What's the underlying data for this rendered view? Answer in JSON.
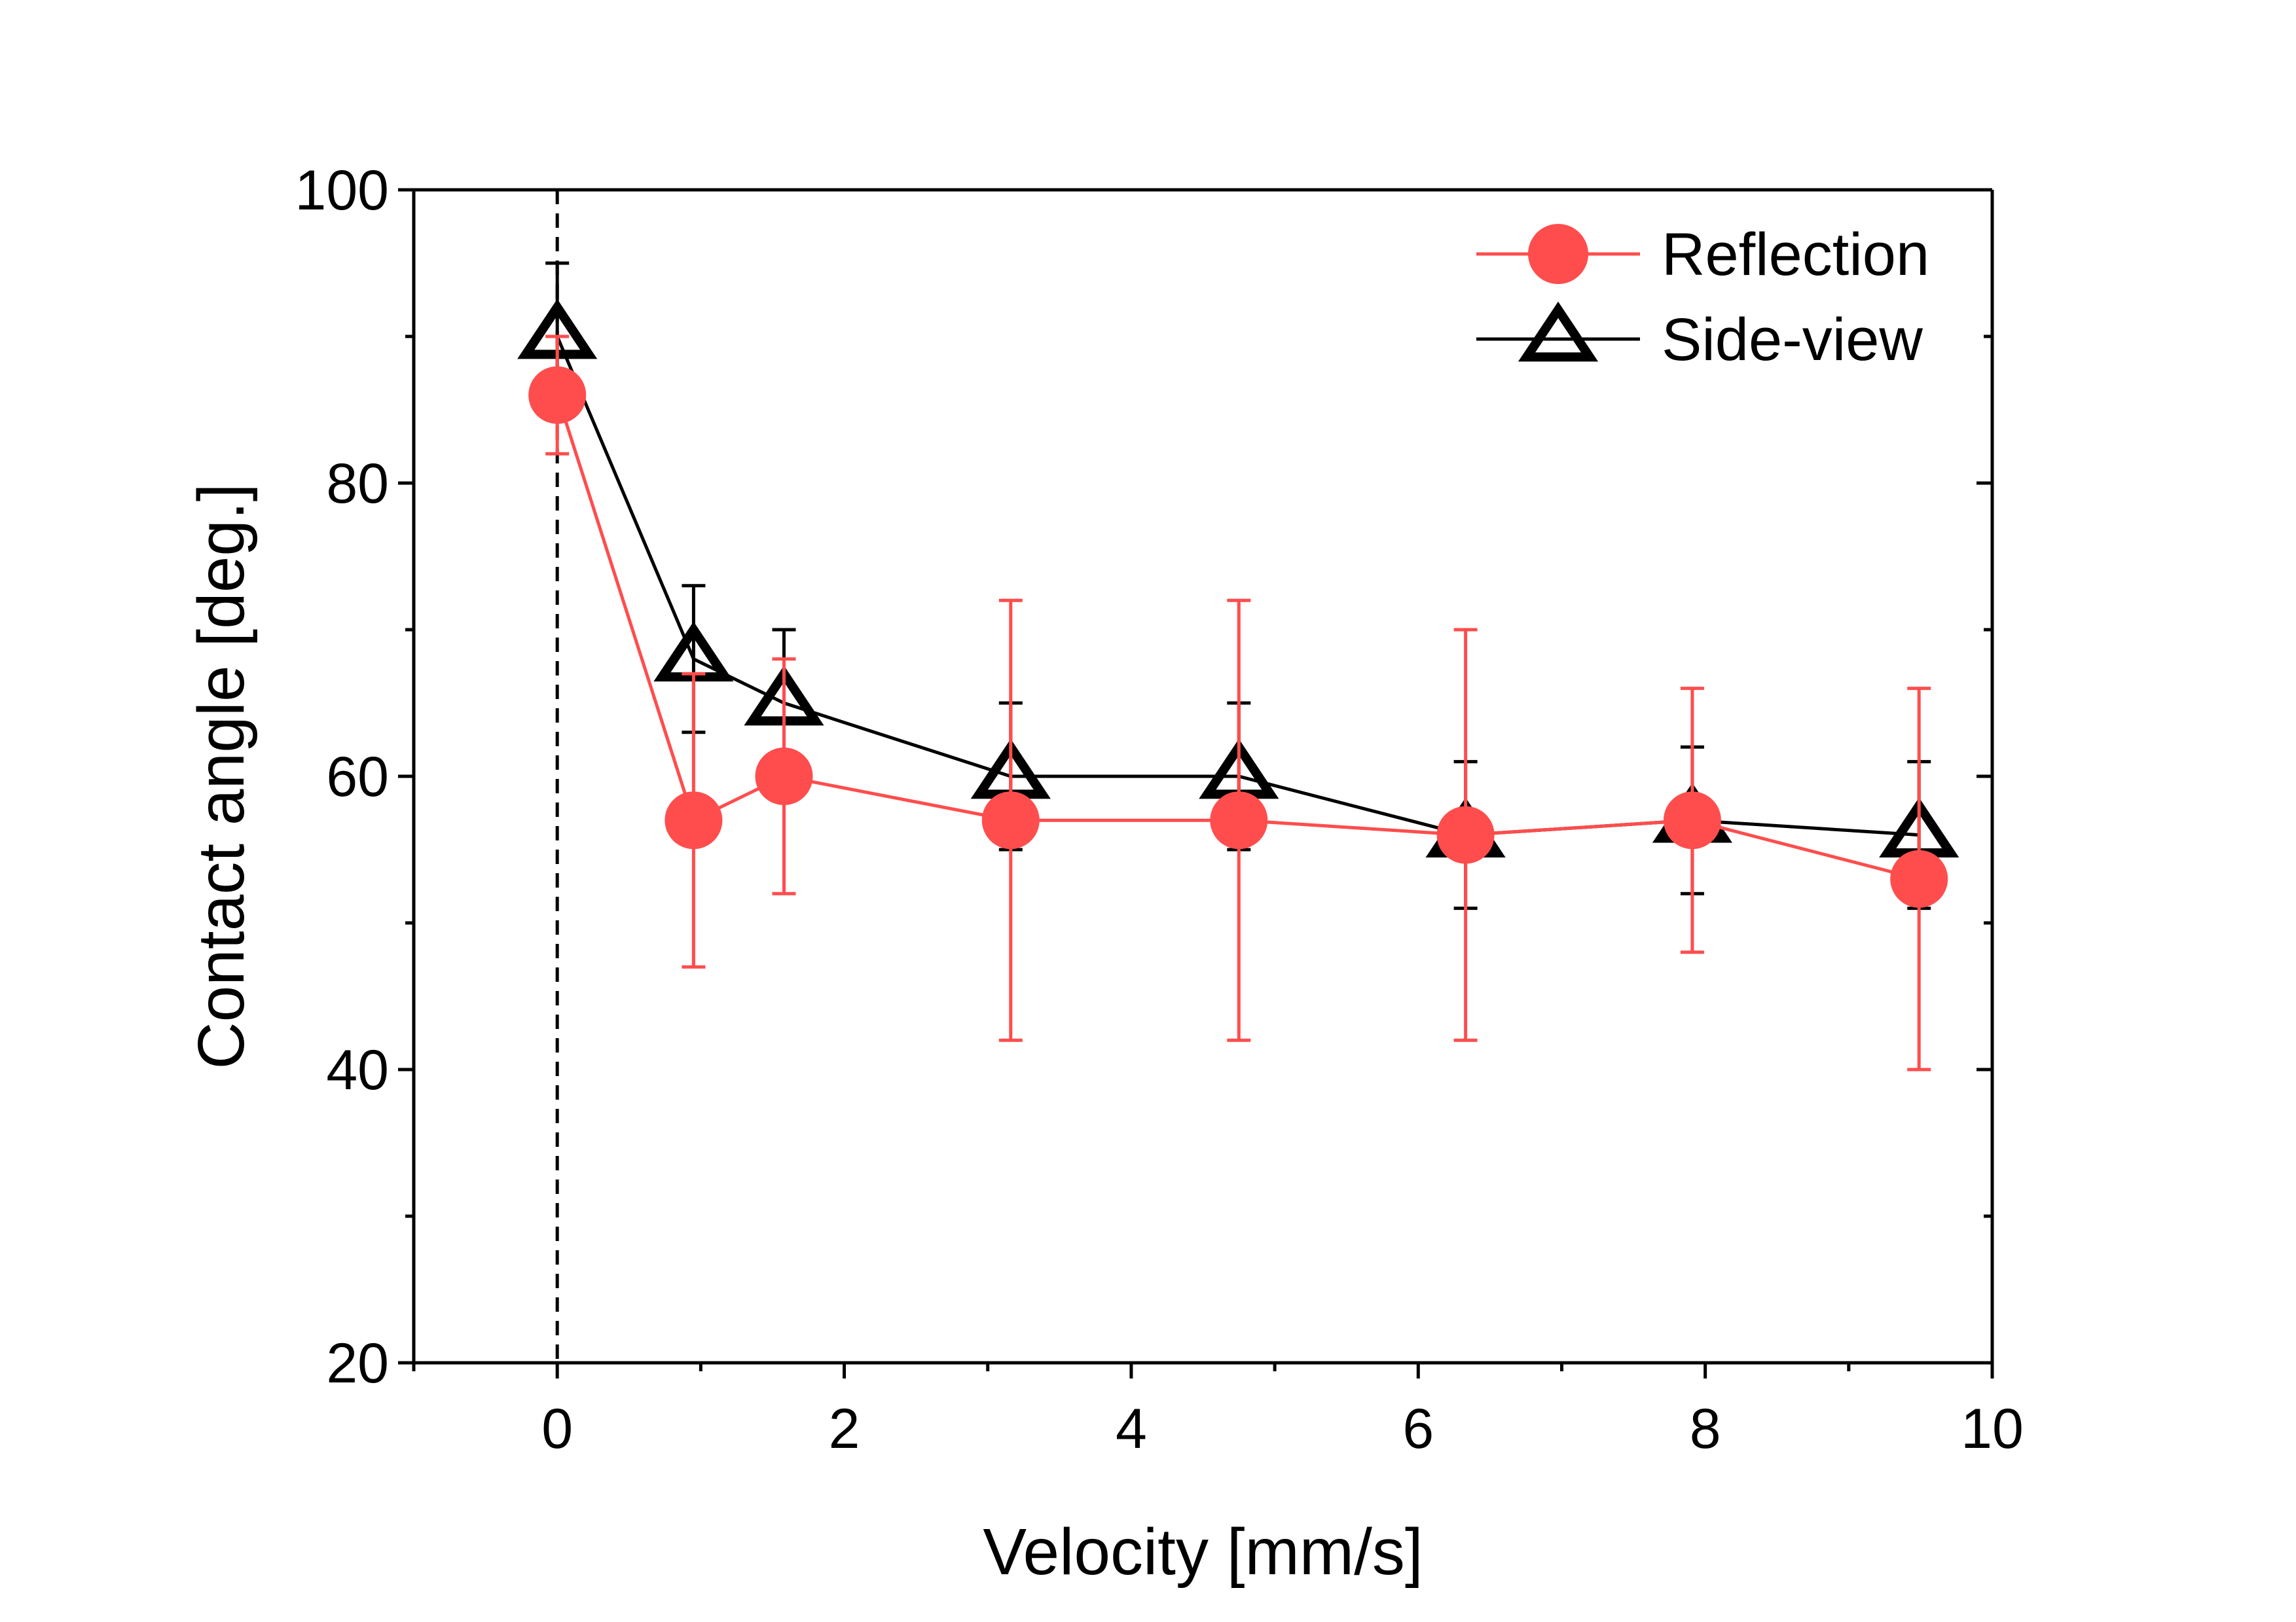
{
  "chart_data": {
    "type": "line",
    "title": "",
    "xlabel": "Velocity [mm/s]",
    "ylabel": "Contact angle [deg.]",
    "xlim": [
      -1,
      10
    ],
    "ylim": [
      20,
      100
    ],
    "x_major_ticks": [
      0,
      2,
      4,
      6,
      8,
      10
    ],
    "x_minor_ticks": [
      -1,
      1,
      3,
      5,
      7,
      9
    ],
    "y_major_ticks": [
      20,
      40,
      60,
      80,
      100
    ],
    "y_minor_ticks": [
      30,
      50,
      70,
      90
    ],
    "reference_line": {
      "x": 0,
      "style": "dashed",
      "color": "#000000"
    },
    "grid": false,
    "legend_position": "top-right",
    "series": [
      {
        "name": "Side-view",
        "marker": "open-triangle",
        "color": "#000000",
        "x": [
          0,
          0.95,
          1.58,
          3.16,
          4.75,
          6.33,
          7.91,
          9.49
        ],
        "values": [
          90,
          68,
          65,
          60,
          60,
          56,
          57,
          56
        ],
        "error": [
          5,
          5,
          5,
          5,
          5,
          5,
          5,
          5
        ]
      },
      {
        "name": "Reflection",
        "marker": "filled-circle",
        "color": "#ff4d4d",
        "x": [
          0,
          0.95,
          1.58,
          3.16,
          4.75,
          6.33,
          7.91,
          9.49
        ],
        "values": [
          86,
          57,
          60,
          57,
          57,
          56,
          57,
          53
        ],
        "error": [
          4,
          10,
          8,
          15,
          15,
          14,
          9,
          13
        ]
      }
    ]
  }
}
